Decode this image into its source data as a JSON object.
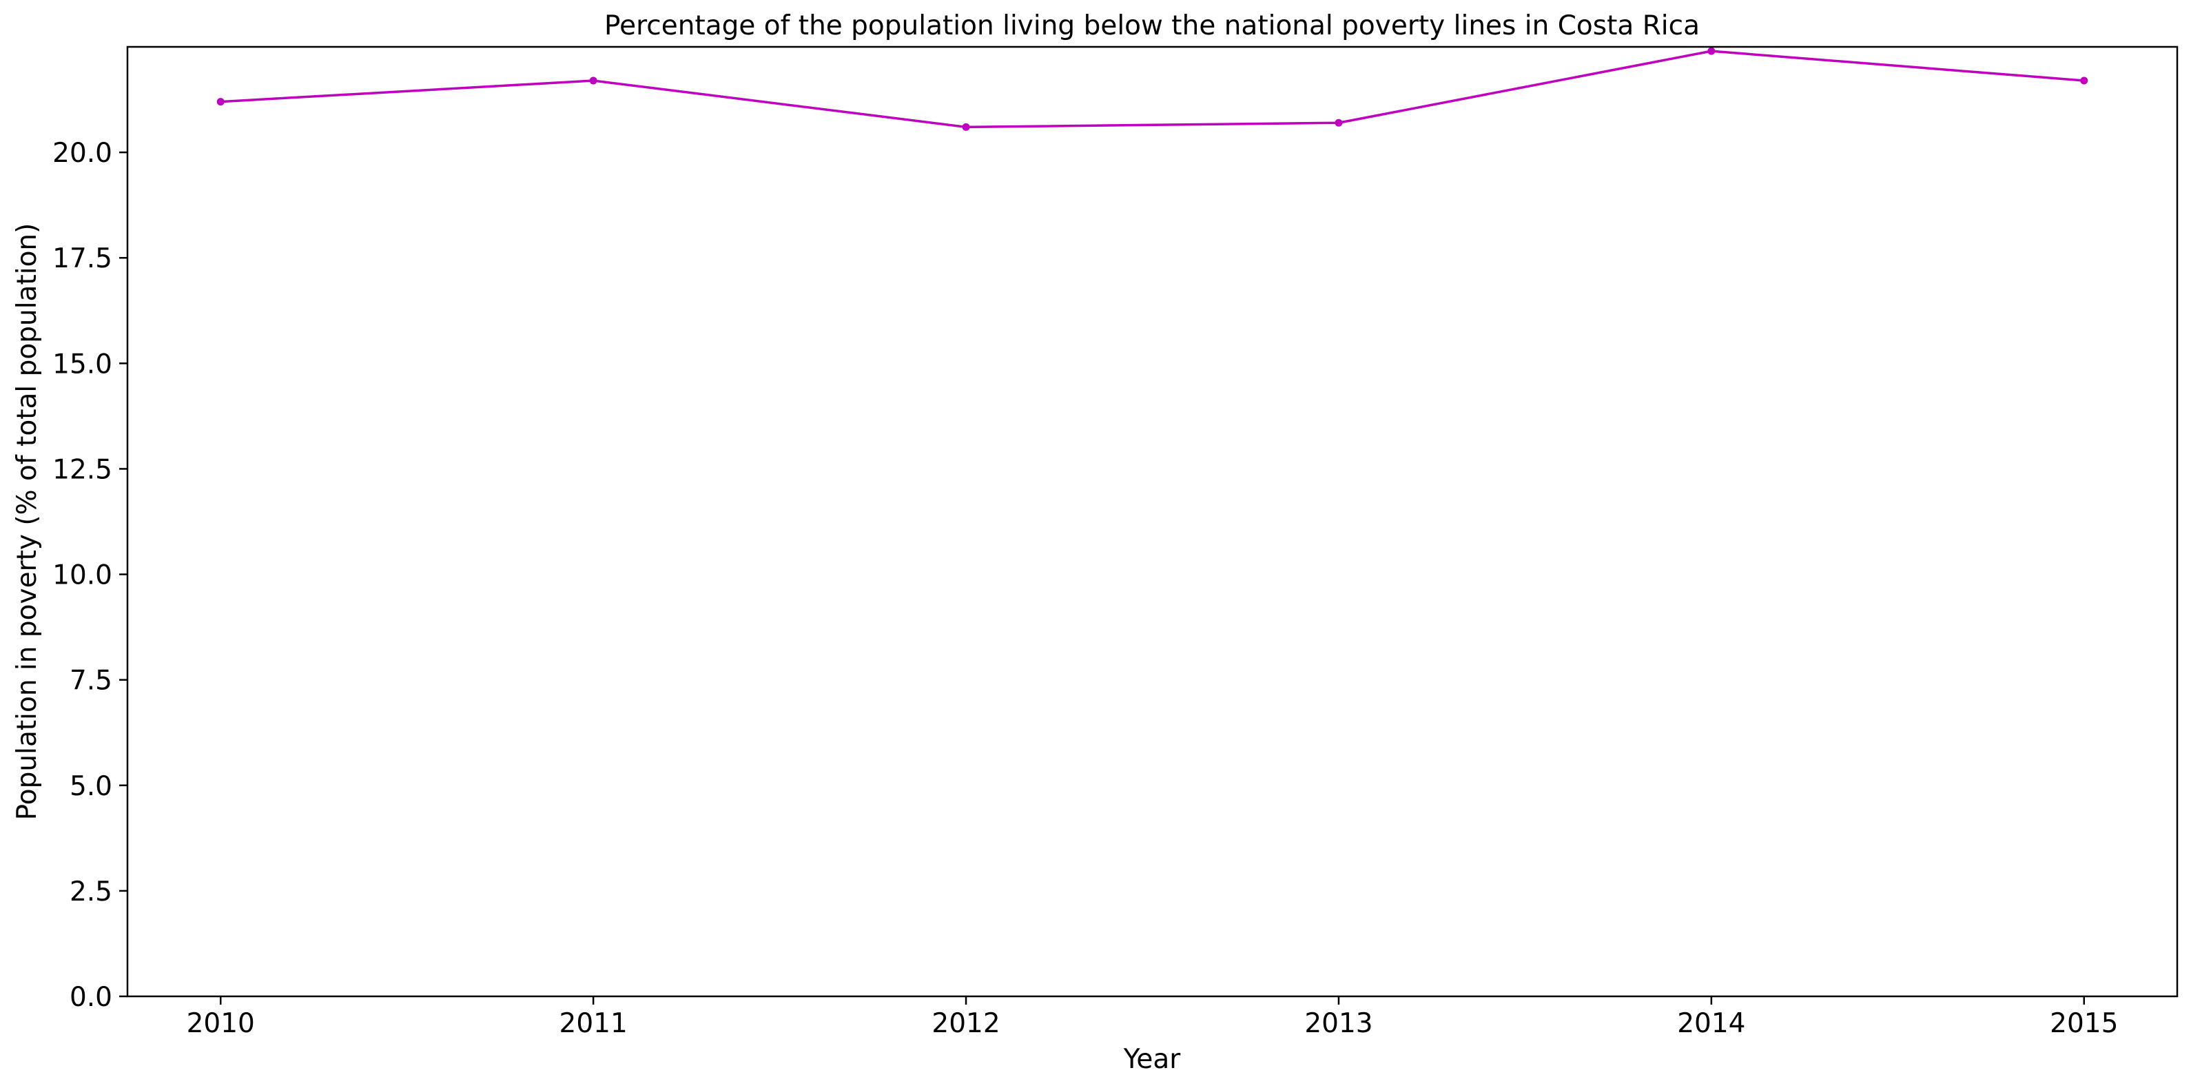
{
  "chart_data": {
    "type": "line",
    "title": "Percentage of the population living below the national poverty lines in Costa Rica",
    "xlabel": "Year",
    "ylabel": "Population in poverty (% of total population)",
    "x": [
      2010,
      2011,
      2012,
      2013,
      2014,
      2015
    ],
    "series": [
      {
        "values": [
          21.2,
          21.7,
          20.6,
          20.7,
          22.4,
          21.7
        ],
        "color": "#bf00bf"
      }
    ],
    "xlim": [
      2009.75,
      2015.25
    ],
    "ylim": [
      0,
      22.5
    ],
    "xticks": [
      "2010",
      "2011",
      "2012",
      "2013",
      "2014",
      "2015"
    ],
    "yticks": [
      "0.0",
      "2.5",
      "5.0",
      "7.5",
      "10.0",
      "12.5",
      "15.0",
      "17.5",
      "20.0"
    ],
    "grid": false,
    "legend": "none"
  }
}
